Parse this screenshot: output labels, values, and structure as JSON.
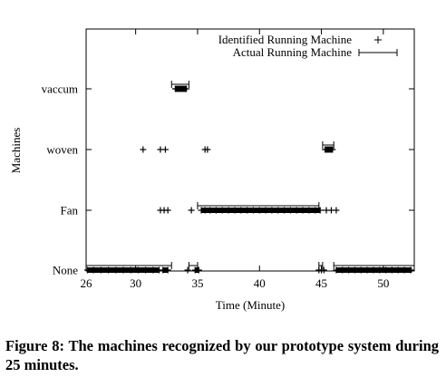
{
  "caption": "Figure 8:  The machines recognized by our prototype system during 25 minutes.",
  "chart_data": {
    "type": "scatter",
    "title": "",
    "xlabel": "Time (Minute)",
    "ylabel": "Machines",
    "xlim": [
      26,
      52.5
    ],
    "x_ticks": [
      26,
      30,
      35,
      40,
      45,
      50
    ],
    "y_categories": [
      "None",
      "Fan",
      "woven",
      "vaccum"
    ],
    "grid": false,
    "legend_position": "top-right",
    "series": [
      {
        "name": "Identified Running Machine",
        "marker": "+",
        "points": [
          {
            "machine": "vaccum",
            "x": [
              33.2,
              33.3,
              33.4,
              33.5,
              33.6,
              33.7,
              33.8,
              33.9,
              34.0,
              34.1
            ]
          },
          {
            "machine": "woven",
            "x": [
              30.6,
              32.0,
              32.4,
              35.6,
              35.8,
              45.3,
              45.4,
              45.5,
              45.6,
              45.7,
              45.8,
              45.9
            ]
          },
          {
            "machine": "Fan",
            "x": [
              32.0,
              32.3,
              32.6,
              34.5,
              35.3,
              35.6,
              36,
              36.5,
              37,
              37.5,
              38,
              38.5,
              39,
              39.5,
              40,
              40.5,
              41,
              41.5,
              42,
              42.5,
              43,
              43.5,
              44,
              44.5,
              44.9,
              45.4,
              45.8,
              46.2
            ]
          },
          {
            "machine": "None",
            "x": [
              26.1,
              26.6,
              27.2,
              27.8,
              28.4,
              29,
              29.6,
              30.2,
              30.8,
              31.4,
              31.9,
              32.2,
              32.6,
              34.2,
              34.8,
              35.1,
              44.8,
              45.0,
              45.2,
              46.2,
              46.7,
              47.2,
              47.7,
              48.2,
              48.7,
              49.2,
              49.7,
              50.2,
              50.7,
              51.2,
              51.7,
              52.2
            ]
          }
        ]
      },
      {
        "name": "Actual Running Machine",
        "marker": "line",
        "segments": [
          {
            "machine": "vaccum",
            "start": 32.9,
            "end": 34.3
          },
          {
            "machine": "woven",
            "start": 45.1,
            "end": 46.0
          },
          {
            "machine": "Fan",
            "start": 35.0,
            "end": 44.8
          },
          {
            "machine": "None",
            "start": 26.0,
            "end": 32.9
          },
          {
            "machine": "None",
            "start": 34.3,
            "end": 35.0
          },
          {
            "machine": "None",
            "start": 44.8,
            "end": 45.1
          },
          {
            "machine": "None",
            "start": 46.0,
            "end": 52.5
          }
        ]
      }
    ]
  }
}
